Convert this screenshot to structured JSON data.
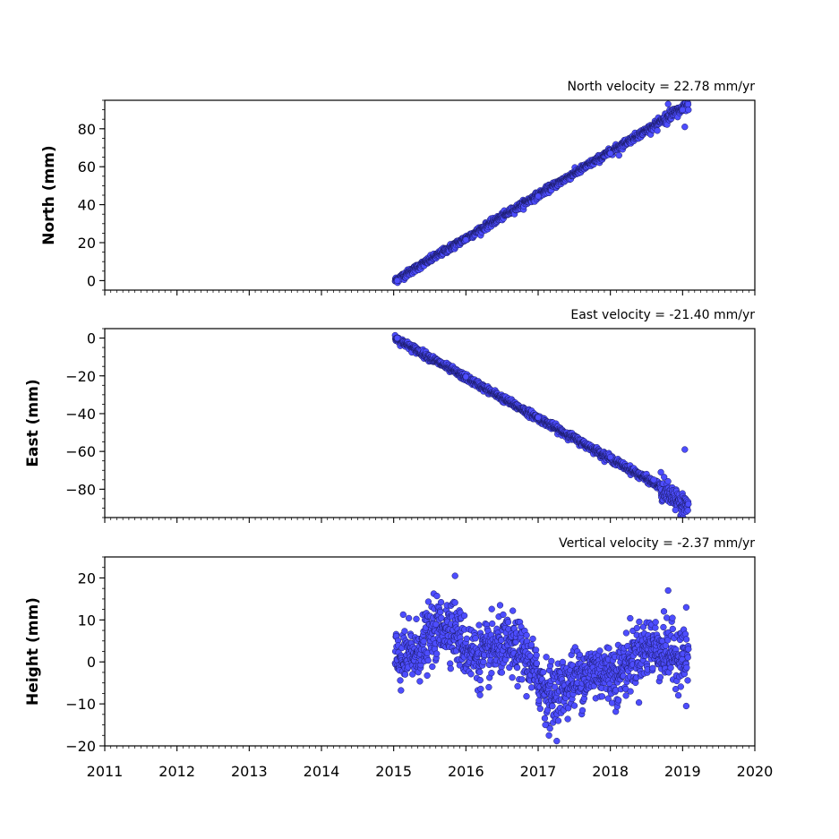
{
  "chart_data": {
    "type": "scatter",
    "shared_x": {
      "xlim": [
        2011,
        2020
      ],
      "ticks": [
        2011,
        2012,
        2013,
        2014,
        2015,
        2016,
        2017,
        2018,
        2019,
        2020
      ],
      "tick_labels": [
        "2011",
        "2012",
        "2013",
        "2014",
        "2015",
        "2016",
        "2017",
        "2018",
        "2019",
        "2020"
      ],
      "minor_ticks_per_year": 12
    },
    "marker": {
      "fill": "#4d4dff",
      "edge": "#1a1a66"
    },
    "panels": [
      {
        "key": "north",
        "title": "North velocity = 22.78 mm/yr",
        "ylabel": "North (mm)",
        "ylim": [
          -5,
          95
        ],
        "yticks": [
          0,
          20,
          40,
          60,
          80
        ],
        "ytick_labels": [
          "0",
          "20",
          "40",
          "60",
          "80"
        ],
        "x_start": 2015.02,
        "x_end": 2019.08,
        "start_value": 0,
        "rate": 22.78,
        "scatter": 0.9,
        "sample_points": [
          [
            2015.05,
            0
          ],
          [
            2016.0,
            21.5
          ],
          [
            2017.0,
            44.5
          ],
          [
            2018.0,
            67
          ],
          [
            2019.0,
            90
          ],
          [
            2018.12,
            66
          ],
          [
            2018.8,
            93
          ],
          [
            2019.03,
            81
          ],
          [
            2018.65,
            79
          ]
        ]
      },
      {
        "key": "east",
        "title": "East velocity = -21.40 mm/yr",
        "ylabel": "East (mm)",
        "ylim": [
          -95,
          5
        ],
        "yticks": [
          0,
          -20,
          -40,
          -60,
          -80
        ],
        "ytick_labels": [
          "0",
          "−20",
          "−40",
          "−60",
          "−80"
        ],
        "x_start": 2015.02,
        "x_end": 2019.08,
        "start_value": 0,
        "rate": -21.4,
        "scatter": 0.9,
        "sample_points": [
          [
            2015.05,
            0
          ],
          [
            2016.0,
            -20.5
          ],
          [
            2017.0,
            -42
          ],
          [
            2018.0,
            -63
          ],
          [
            2018.6,
            -75
          ],
          [
            2019.03,
            -59
          ],
          [
            2018.9,
            -91
          ],
          [
            2018.7,
            -71
          ]
        ]
      },
      {
        "key": "height",
        "title": "Vertical velocity = -2.37 mm/yr",
        "ylabel": "Height (mm)",
        "ylim": [
          -20,
          25
        ],
        "yticks": [
          -20,
          -10,
          0,
          10,
          20
        ],
        "ytick_labels": [
          "−20",
          "−10",
          "0",
          "10",
          "20"
        ],
        "x_start": 2015.02,
        "x_end": 2019.08,
        "seasonal_anchors": [
          [
            2015.0,
            0
          ],
          [
            2015.3,
            2
          ],
          [
            2015.6,
            8
          ],
          [
            2015.8,
            9
          ],
          [
            2016.0,
            3
          ],
          [
            2016.2,
            1
          ],
          [
            2016.5,
            4
          ],
          [
            2016.8,
            2
          ],
          [
            2017.0,
            -4
          ],
          [
            2017.2,
            -8
          ],
          [
            2017.5,
            -4
          ],
          [
            2017.8,
            -2
          ],
          [
            2018.1,
            -3
          ],
          [
            2018.3,
            1
          ],
          [
            2018.55,
            4
          ],
          [
            2018.8,
            2
          ],
          [
            2019.08,
            1
          ]
        ],
        "scatter": 3.5,
        "sample_points": [
          [
            2015.85,
            20.5
          ],
          [
            2018.8,
            17
          ],
          [
            2017.15,
            -17.5
          ],
          [
            2019.05,
            13
          ],
          [
            2017.1,
            -15
          ],
          [
            2019.05,
            -10.5
          ]
        ]
      }
    ]
  }
}
